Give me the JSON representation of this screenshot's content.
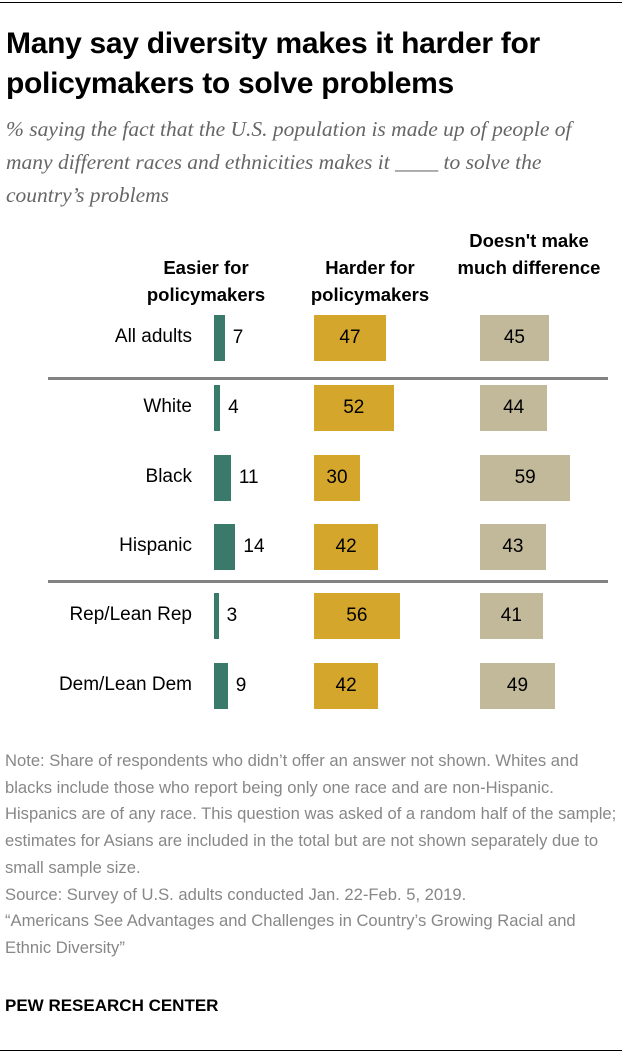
{
  "chart_data": {
    "type": "bar",
    "title": "Many say diversity makes it harder for policymakers to solve problems",
    "subtitle": "% saying the fact that the U.S. population is made up of people of many different races and ethnicities makes it ____ to solve the country’s problems",
    "categories": [
      "All adults",
      "White",
      "Black",
      "Hispanic",
      "Rep/Lean Rep",
      "Dem/Lean Dem"
    ],
    "series": [
      {
        "name": "Easier for policymakers",
        "color": "#3a7a6a",
        "values": [
          7,
          4,
          11,
          14,
          3,
          9
        ]
      },
      {
        "name": "Harder for policymakers",
        "color": "#d4a72c",
        "values": [
          47,
          52,
          30,
          42,
          56,
          42
        ]
      },
      {
        "name": "Doesn't make much difference",
        "color": "#c2b99b",
        "values": [
          45,
          44,
          59,
          43,
          41,
          49
        ]
      }
    ],
    "grid": false
  },
  "notes": [
    "Note: Share of respondents who didn’t offer an answer not shown. Whites and blacks include those who report being only one race and are non-Hispanic. Hispanics are of any race. This question was asked of a random half of the sample; estimates for Asians are included in the total but are not shown separately due to small sample size.",
    "Source: Survey of U.S. adults conducted Jan. 22-Feb. 5, 2019.",
    "“Americans See Advantages and Challenges in Country’s Growing Racial and Ethnic Diversity”"
  ],
  "brand": "PEW RESEARCH CENTER"
}
